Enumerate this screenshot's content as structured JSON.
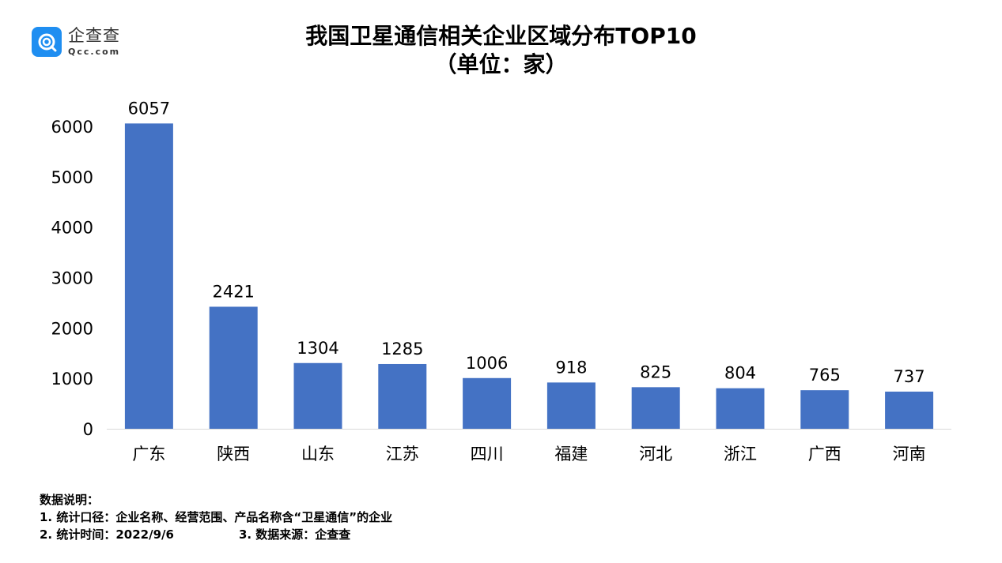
{
  "logo": {
    "name": "企查查",
    "domain": "Qcc.com"
  },
  "colors": {
    "bar": "#4472C4",
    "axis": "#d9d9d9",
    "logo": "#1f8ef1"
  },
  "chart_data": {
    "type": "bar",
    "title": "我国卫星通信相关企业区域分布TOP10",
    "subtitle": "（单位：家）",
    "categories": [
      "广东",
      "陕西",
      "山东",
      "江苏",
      "四川",
      "福建",
      "河北",
      "浙江",
      "广西",
      "河南"
    ],
    "values": [
      6057,
      2421,
      1304,
      1285,
      1006,
      918,
      825,
      804,
      765,
      737
    ],
    "ylim": [
      0,
      6000
    ],
    "yticks": [
      0,
      1000,
      2000,
      3000,
      4000,
      5000,
      6000
    ],
    "grid": false,
    "data_labels": true,
    "legend": "none"
  },
  "notes": {
    "heading": "数据说明：",
    "line1": "1. 统计口径：企业名称、经营范围、产品名称含“卫星通信”的企业",
    "line2a": "2. 统计时间：2022/9/6",
    "line2b": "3. 数据来源：企查查"
  }
}
